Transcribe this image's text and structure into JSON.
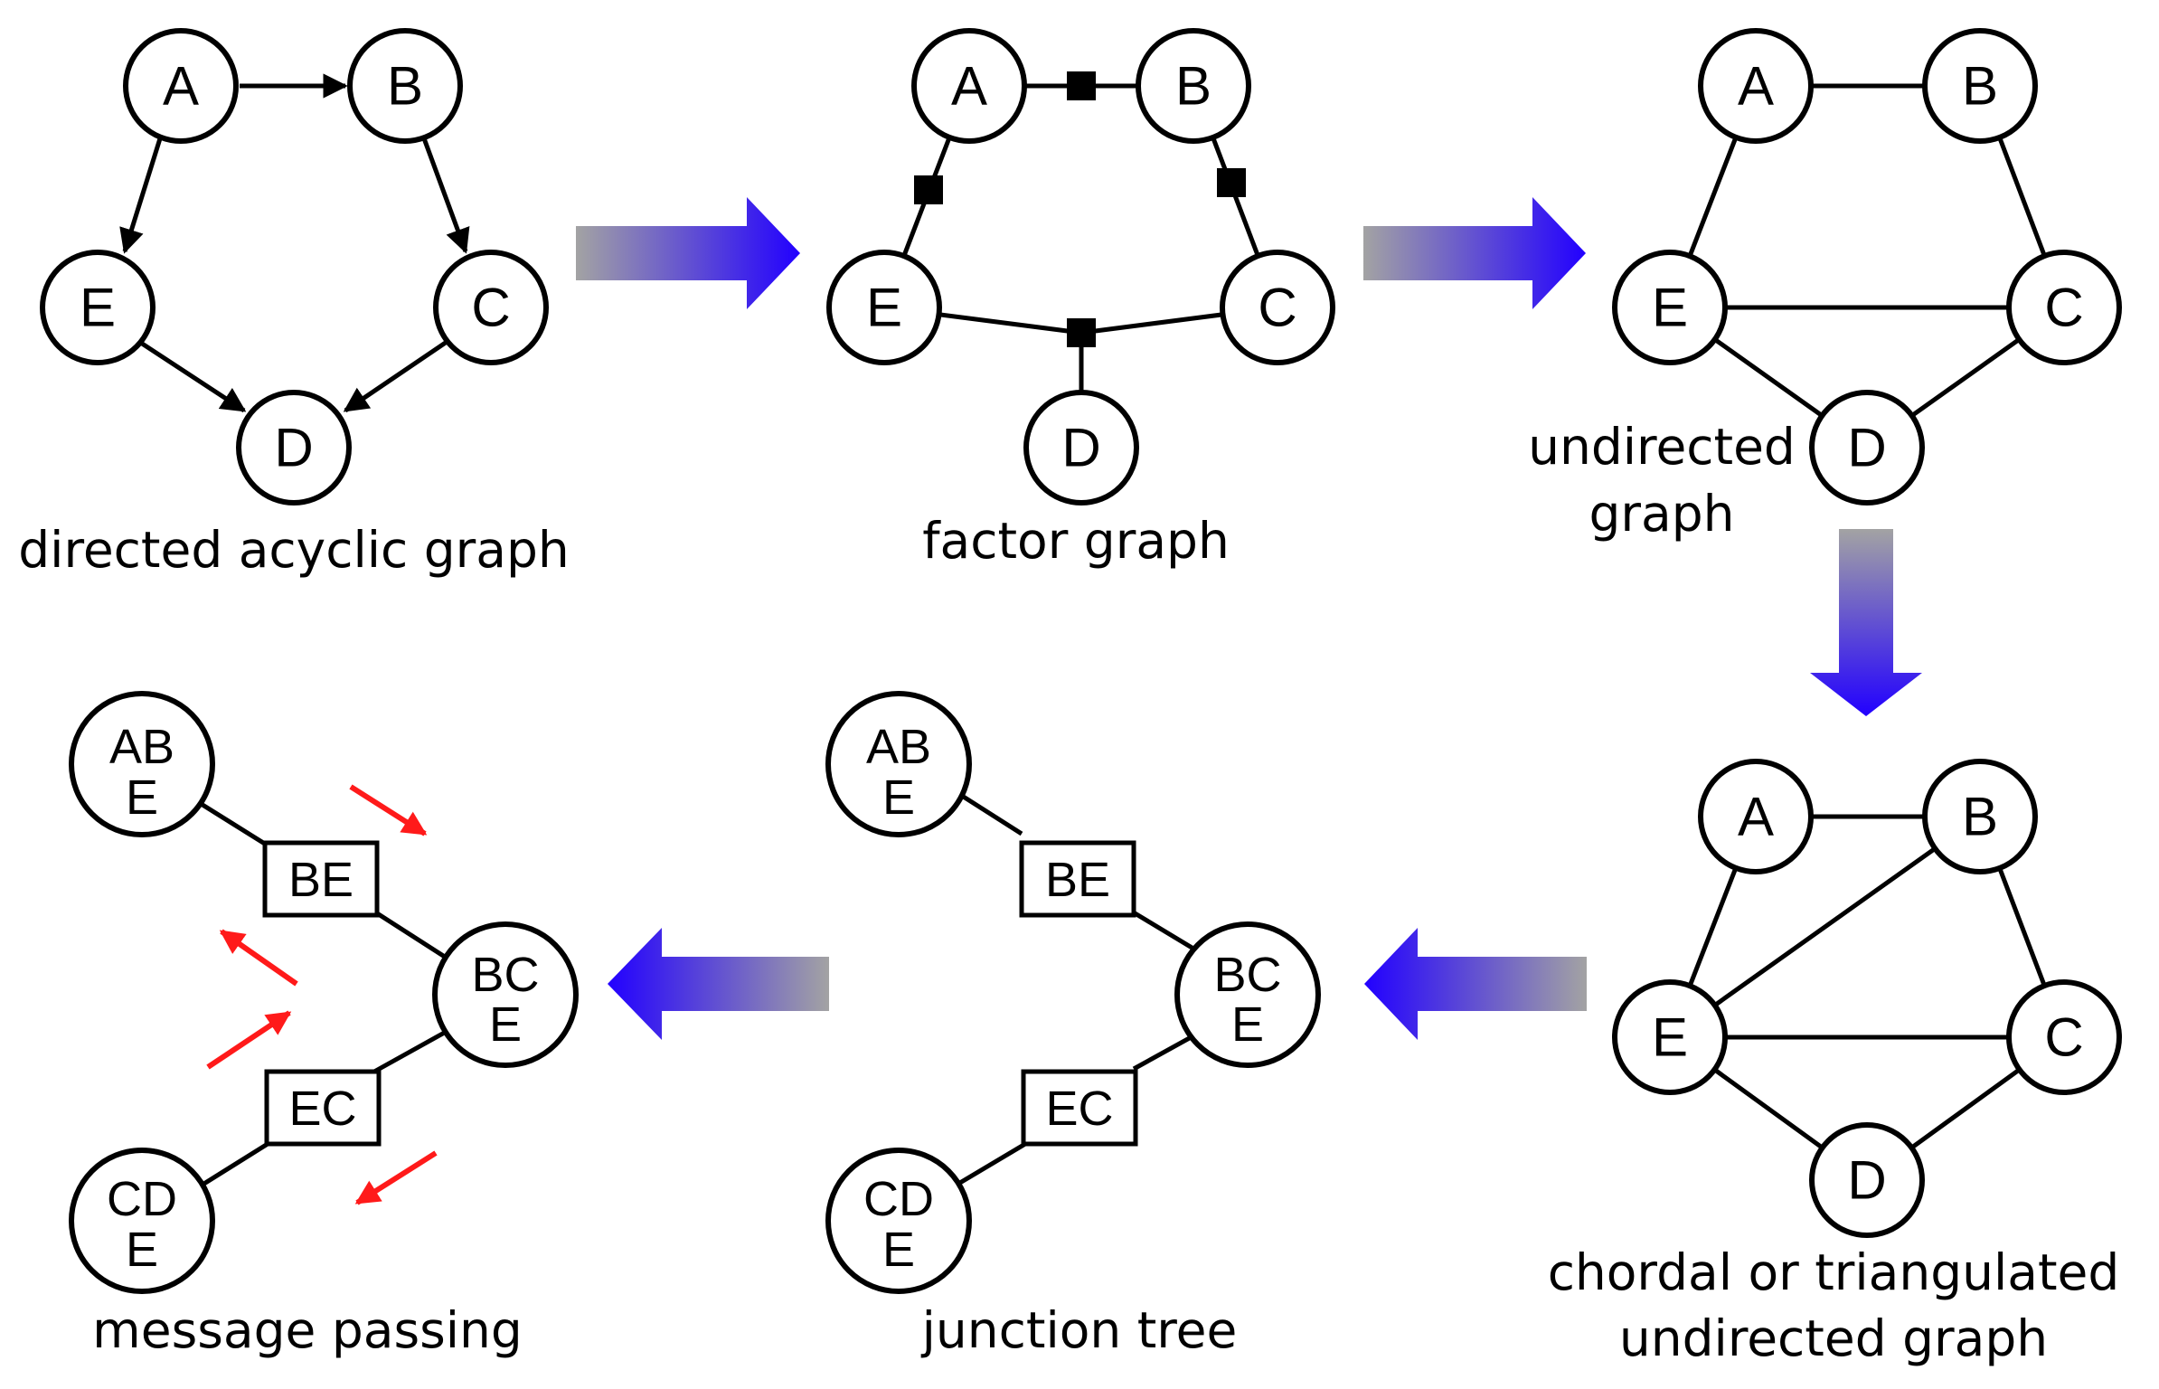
{
  "colors": {
    "ink": "#000000",
    "arrow_gray": "#a3a3a3",
    "arrow_blue": "#2200ff",
    "message_red": "#ff1a1a"
  },
  "panels": {
    "dag": {
      "caption": "directed acyclic graph",
      "nodes": [
        "A",
        "B",
        "C",
        "D",
        "E"
      ],
      "edges": [
        [
          "A",
          "B"
        ],
        [
          "A",
          "E"
        ],
        [
          "B",
          "C"
        ],
        [
          "E",
          "D"
        ],
        [
          "C",
          "D"
        ]
      ]
    },
    "factor": {
      "caption": "factor graph",
      "nodes": [
        "A",
        "B",
        "C",
        "D",
        "E"
      ]
    },
    "undirected": {
      "caption_line1": "undirected",
      "caption_line2": "graph",
      "nodes": [
        "A",
        "B",
        "C",
        "D",
        "E"
      ],
      "edges": [
        [
          "A",
          "B"
        ],
        [
          "A",
          "E"
        ],
        [
          "B",
          "C"
        ],
        [
          "E",
          "C"
        ],
        [
          "E",
          "D"
        ],
        [
          "C",
          "D"
        ]
      ]
    },
    "chordal": {
      "caption_line1": "chordal or triangulated",
      "caption_line2": "undirected graph",
      "nodes": [
        "A",
        "B",
        "C",
        "D",
        "E"
      ],
      "edges": [
        [
          "A",
          "B"
        ],
        [
          "A",
          "E"
        ],
        [
          "B",
          "E"
        ],
        [
          "B",
          "C"
        ],
        [
          "E",
          "C"
        ],
        [
          "E",
          "D"
        ],
        [
          "C",
          "D"
        ]
      ]
    },
    "junction": {
      "caption": "junction tree",
      "cliques": [
        {
          "line1": "AB",
          "line2": "E"
        },
        {
          "line1": "BC",
          "line2": "E"
        },
        {
          "line1": "CD",
          "line2": "E"
        }
      ],
      "separators": [
        "BE",
        "EC"
      ]
    },
    "message": {
      "caption": "message passing",
      "cliques": [
        {
          "line1": "AB",
          "line2": "E"
        },
        {
          "line1": "BC",
          "line2": "E"
        },
        {
          "line1": "CD",
          "line2": "E"
        }
      ],
      "separators": [
        "BE",
        "EC"
      ]
    }
  },
  "flow": [
    "dag",
    "factor",
    "undirected",
    "chordal",
    "junction",
    "message"
  ]
}
